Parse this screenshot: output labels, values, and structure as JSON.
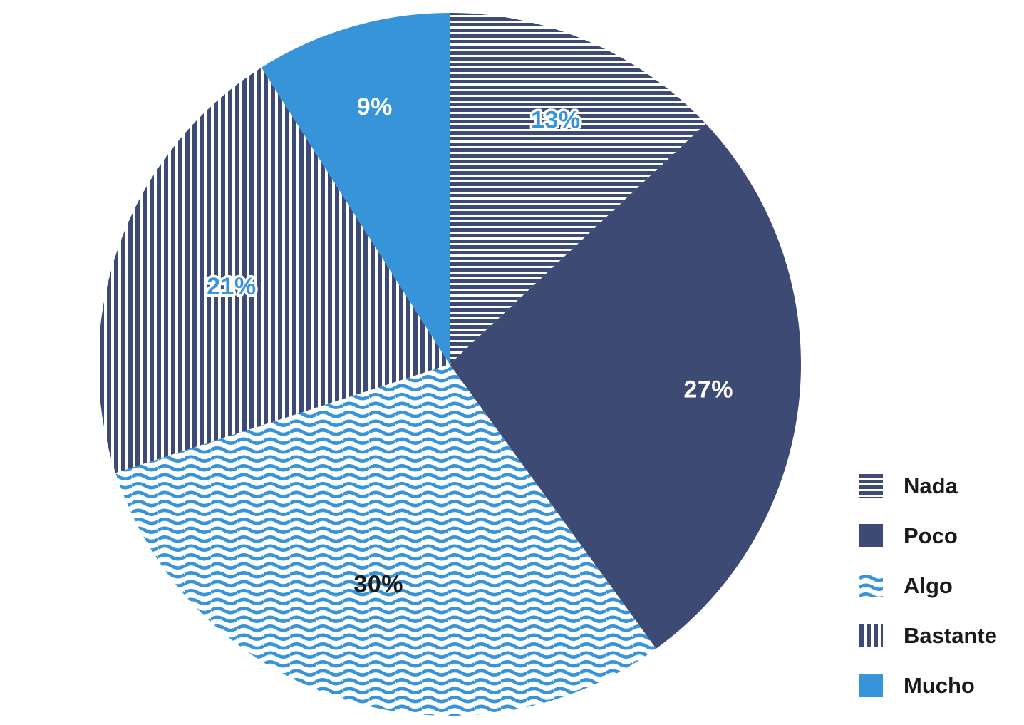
{
  "figure": {
    "background": "#ffffff"
  },
  "colors": {
    "dark_blue": "#3D4B74",
    "light_blue": "#3794D8",
    "label_dark": "#1a1a1a",
    "pattern_background": "#ffffff"
  },
  "chart_data": {
    "type": "pie",
    "title": "",
    "start_angle_deg": 0,
    "direction": "clockwise",
    "legend_position": "right",
    "categories": [
      "Nada",
      "Poco",
      "Algo",
      "Bastante",
      "Mucho"
    ],
    "values": [
      13,
      27,
      30,
      21,
      9
    ],
    "slices": [
      {
        "label": "Nada",
        "value_pct": 13,
        "data_label": "13%",
        "fill_style": "horizontal-stripes",
        "fill_color": "#3D4B74",
        "data_label_style": "blue-outlined"
      },
      {
        "label": "Poco",
        "value_pct": 27,
        "data_label": "27%",
        "fill_style": "solid-dark",
        "fill_color": "#3D4B74",
        "data_label_style": "white"
      },
      {
        "label": "Algo",
        "value_pct": 30,
        "data_label": "30%",
        "fill_style": "waves",
        "fill_color": "#3794D8",
        "data_label_style": "dark"
      },
      {
        "label": "Bastante",
        "value_pct": 21,
        "data_label": "21%",
        "fill_style": "vertical-stripes",
        "fill_color": "#3D4B74",
        "data_label_style": "blue-outlined"
      },
      {
        "label": "Mucho",
        "value_pct": 9,
        "data_label": "9%",
        "fill_style": "solid-light",
        "fill_color": "#3794D8",
        "data_label_style": "white"
      }
    ]
  }
}
